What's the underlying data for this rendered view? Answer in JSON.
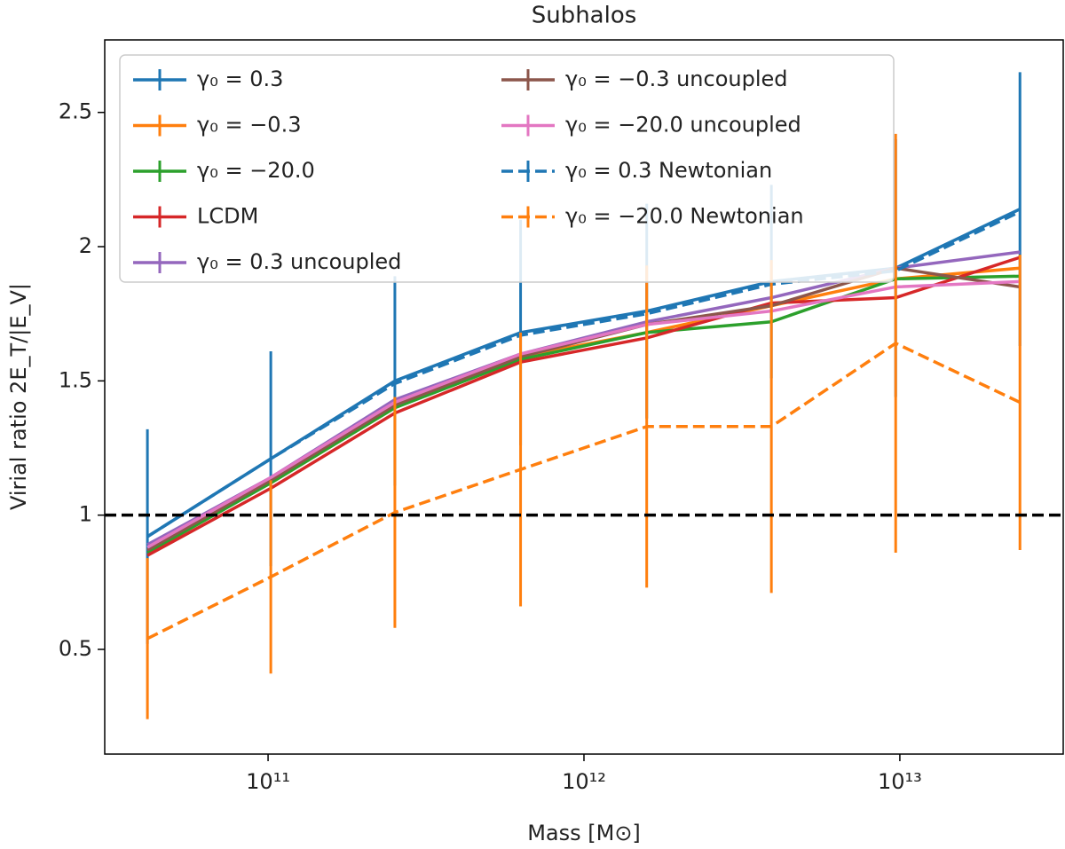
{
  "chart_data": {
    "type": "line",
    "title": "Subhalos",
    "xlabel": "Mass [M⊙]",
    "ylabel": "Virial ratio 2E_T/|E_V|",
    "xscale": "log",
    "xlim": [
      30400000000.0,
      32900000000000.0
    ],
    "ylim": [
      0.11,
      2.77
    ],
    "xticks": [
      {
        "value": 100000000000.0,
        "label": "10¹¹"
      },
      {
        "value": 1000000000000.0,
        "label": "10¹²"
      },
      {
        "value": 10000000000000.0,
        "label": "10¹³"
      }
    ],
    "yticks": [
      0.5,
      1.0,
      1.5,
      2.0,
      2.5
    ],
    "hline": {
      "value": 1.0,
      "color": "#000000"
    },
    "legend": "upper left",
    "x": [
      41500000000.0,
      102000000000.0,
      252000000000.0,
      630000000000.0,
      1580000000000.0,
      3920000000000.0,
      9700000000000.0,
      24000000000000.0
    ],
    "series": [
      {
        "name": "γ₀ = 0.3",
        "color": "#1f77b4",
        "dash": false,
        "values": [
          0.92,
          1.21,
          1.5,
          1.68,
          1.76,
          1.87,
          1.92,
          2.14
        ],
        "errors": [
          0.4,
          0.4,
          0.39,
          0.42,
          0.4,
          0.36,
          0.48,
          0.51
        ]
      },
      {
        "name": "γ₀ = −0.3",
        "color": "#ff7f0e",
        "dash": false,
        "values": [
          0.87,
          1.12,
          1.4,
          1.59,
          1.68,
          1.78,
          1.88,
          1.92
        ]
      },
      {
        "name": "γ₀ = −20.0",
        "color": "#2ca02c",
        "dash": false,
        "values": [
          0.86,
          1.12,
          1.4,
          1.58,
          1.68,
          1.72,
          1.88,
          1.89
        ]
      },
      {
        "name": "LCDM",
        "color": "#d62728",
        "dash": false,
        "values": [
          0.85,
          1.1,
          1.38,
          1.57,
          1.66,
          1.79,
          1.81,
          1.96
        ]
      },
      {
        "name": "γ₀ = 0.3 uncoupled",
        "color": "#9467bd",
        "dash": false,
        "values": [
          0.89,
          1.14,
          1.43,
          1.6,
          1.72,
          1.81,
          1.92,
          1.98
        ]
      },
      {
        "name": "γ₀ = −0.3 uncoupled",
        "color": "#8c564b",
        "dash": false,
        "values": [
          0.87,
          1.13,
          1.41,
          1.59,
          1.71,
          1.78,
          1.92,
          1.85
        ]
      },
      {
        "name": "γ₀ = −20.0 uncoupled",
        "color": "#e377c2",
        "dash": false,
        "values": [
          0.88,
          1.14,
          1.42,
          1.6,
          1.71,
          1.76,
          1.85,
          1.87
        ]
      },
      {
        "name": "γ₀ = 0.3 Newtonian",
        "color": "#1f77b4",
        "dash": true,
        "values": [
          0.92,
          1.21,
          1.49,
          1.67,
          1.75,
          1.86,
          1.91,
          2.13
        ]
      },
      {
        "name": "γ₀ = −20.0 Newtonian",
        "color": "#ff7f0e",
        "dash": true,
        "values": [
          0.54,
          0.77,
          1.01,
          1.17,
          1.33,
          1.33,
          1.64,
          1.42
        ],
        "errors": [
          0.3,
          0.36,
          0.43,
          0.51,
          0.6,
          0.62,
          0.78,
          0.55
        ]
      }
    ]
  }
}
